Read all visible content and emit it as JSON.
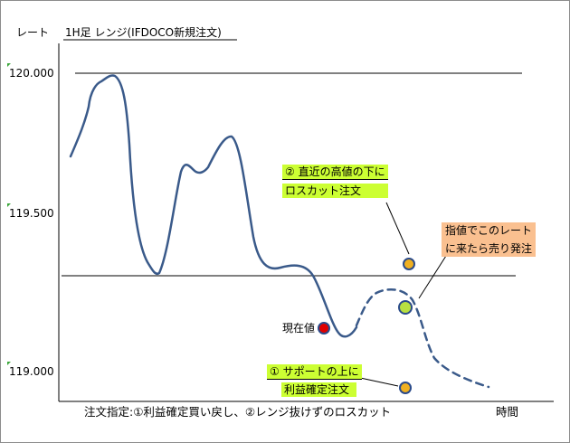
{
  "header": {
    "y_axis_title": "レート",
    "chart_title": "1H足 レンジ(IFDOCO新規注文)"
  },
  "y_ticks": [
    "120.000",
    "119.500",
    "119.000"
  ],
  "x_axis_title": "時間",
  "current_price_label": "現在値",
  "annotations": {
    "stop_loss": {
      "line1": "② 直近の高値の下に",
      "line2": "ロスカット注文"
    },
    "take_profit": {
      "line1": "① サポートの上に",
      "line2": "利益確定注文"
    },
    "sell_order": {
      "line1": "指値でこのレート",
      "line2": "に来たら売り発注"
    }
  },
  "footer_text": "注文指定:①利益確定買い戻し、②レンジ抜けずのロスカット",
  "colors": {
    "price_line": "#3a5a8a",
    "current_marker": "#e00000",
    "order_marker": "#f0b020",
    "entry_marker": "#b8e040",
    "green_label": "#ccff33",
    "orange_label": "#fac090"
  }
}
